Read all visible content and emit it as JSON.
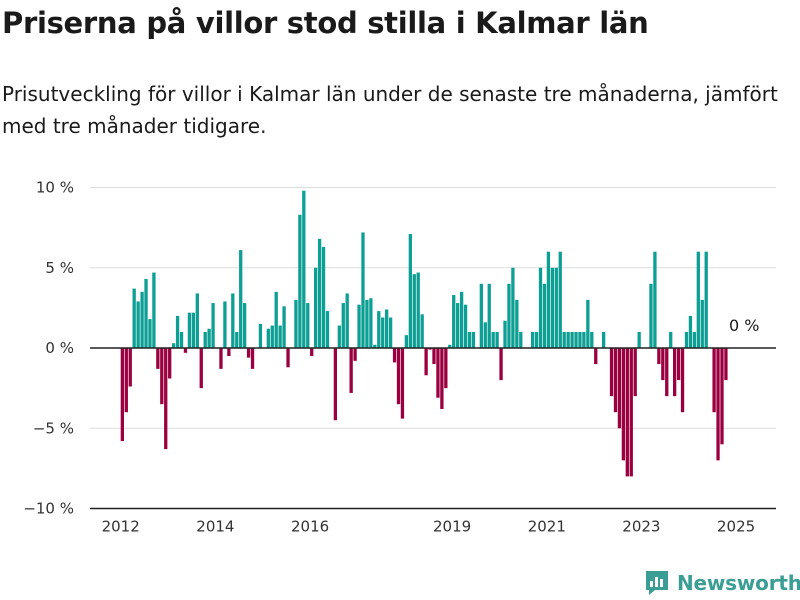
{
  "title": "Priserna på villor stod stilla i Kalmar län",
  "subtitle": "Prisutveckling för villor i Kalmar län under de senaste tre månaderna, jämfört med tre månader tidigare.",
  "brand": "Newsworthy",
  "colors": {
    "positive": "#0e9f94",
    "negative": "#9a003f",
    "grid": "#dddddd",
    "axis": "#222222",
    "brand": "#3a9e94"
  },
  "chart_data": {
    "type": "bar",
    "ylim": [
      -10,
      10
    ],
    "y_ticks": [
      {
        "value": 10,
        "label": "10 %"
      },
      {
        "value": 5,
        "label": "5 %"
      },
      {
        "value": 0,
        "label": "0 %"
      },
      {
        "value": -5,
        "label": "−5 %"
      },
      {
        "value": -10,
        "label": "−10 %"
      }
    ],
    "x_ticks": [
      "2012",
      "2014",
      "2016",
      "2019",
      "2021",
      "2023",
      "2025"
    ],
    "last_value_label": "0 %",
    "start_year": 2012,
    "values": [
      -5.8,
      -4.0,
      -2.4,
      3.7,
      2.9,
      3.5,
      4.3,
      1.8,
      4.7,
      -1.3,
      -3.5,
      -6.3,
      -1.9,
      0.3,
      2.0,
      1.0,
      -0.3,
      2.2,
      2.2,
      3.4,
      -2.5,
      1.0,
      1.2,
      2.8,
      0.0,
      -1.3,
      2.9,
      -0.5,
      3.4,
      1.0,
      6.1,
      2.8,
      -0.6,
      -1.3,
      0.0,
      1.5,
      0.0,
      1.2,
      1.4,
      3.5,
      1.4,
      2.6,
      -1.2,
      0.0,
      3.0,
      8.3,
      9.8,
      2.8,
      -0.5,
      5.0,
      6.8,
      6.3,
      2.3,
      0.0,
      -4.5,
      1.4,
      2.8,
      3.4,
      -2.8,
      -0.8,
      2.7,
      7.2,
      3.0,
      3.1,
      0.2,
      2.3,
      1.9,
      2.4,
      1.9,
      -0.9,
      -3.5,
      -4.4,
      0.8,
      7.1,
      4.6,
      4.7,
      2.1,
      -1.7,
      -0.1,
      -1.0,
      -3.1,
      -3.8,
      -2.5,
      0.2,
      3.3,
      2.8,
      3.5,
      2.7,
      1.0,
      1.0,
      0.0,
      4.0,
      1.6,
      4.0,
      1.0,
      1.0,
      -2.0,
      1.7,
      4.0,
      5.0,
      3.0,
      1.0,
      0.0,
      0.0,
      1.0,
      1.0,
      5.0,
      4.0,
      6.0,
      5.0,
      5.0,
      6.0,
      1.0,
      1.0,
      1.0,
      1.0,
      1.0,
      1.0,
      3.0,
      1.0,
      -1.0,
      0.0,
      1.0,
      0.0,
      -3.0,
      -4.0,
      -5.0,
      -7.0,
      -8.0,
      -8.0,
      -3.0,
      1.0,
      0.0,
      0.0,
      4.0,
      6.0,
      -1.0,
      -2.0,
      -3.0,
      1.0,
      -3.0,
      -2.0,
      -4.0,
      1.0,
      2.0,
      1.0,
      6.0,
      3.0,
      6.0,
      0.0,
      -4.0,
      -7.0,
      -6.0,
      -2.0,
      0.0
    ]
  }
}
